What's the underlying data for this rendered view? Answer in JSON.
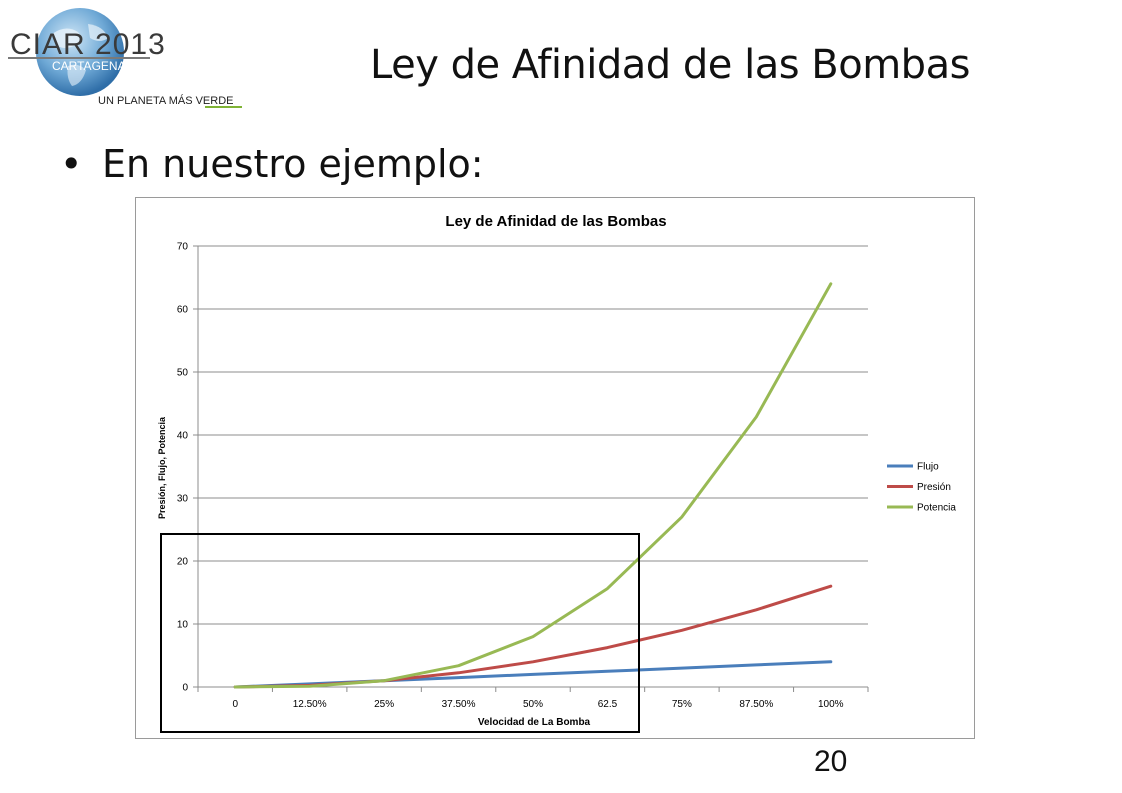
{
  "logo": {
    "brand_text": "CIAR 2013",
    "city_text": "CARTAGENA",
    "tagline_text": "UN PLANETA MÁS VERDE",
    "icon": "globe-icon"
  },
  "slide": {
    "title": "Ley de Afinidad de las Bombas",
    "bullet": "En nuestro ejemplo:",
    "page_number": "20"
  },
  "chart_data": {
    "type": "line",
    "title": "Ley de Afinidad de las Bombas",
    "xlabel": "Velocidad de La Bomba",
    "ylabel": "Presión, Flujo, Potencia",
    "categories": [
      "0",
      "12.50%",
      "25%",
      "37.50%",
      "50%",
      "62.5",
      "75%",
      "87.50%",
      "100%"
    ],
    "ylim": [
      0,
      70
    ],
    "yticks": [
      "0",
      "10",
      "20",
      "30",
      "40",
      "50",
      "60",
      "70"
    ],
    "grid": true,
    "legend_position": "right",
    "series": [
      {
        "name": "Flujo",
        "color": "#4a7ebb",
        "values": [
          0,
          0.5,
          1,
          1.5,
          2,
          2.5,
          3,
          3.5,
          4
        ]
      },
      {
        "name": "Presión",
        "color": "#be4b48",
        "values": [
          0,
          0.25,
          1,
          2.25,
          4,
          6.25,
          9,
          12.25,
          16
        ]
      },
      {
        "name": "Potencia",
        "color": "#98b954",
        "values": [
          0,
          0.125,
          1,
          3.375,
          8,
          15.625,
          27,
          42.875,
          64
        ]
      }
    ]
  }
}
